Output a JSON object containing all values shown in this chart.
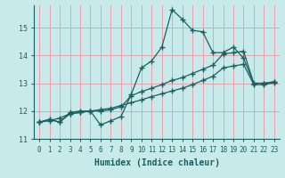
{
  "xlabel": "Humidex (Indice chaleur)",
  "ylabel": "",
  "background_color": "#c8eaea",
  "grid_color": "#e8a0a8",
  "line_color": "#1a6060",
  "border_color": "#1a6060",
  "x": [
    0,
    1,
    2,
    3,
    4,
    5,
    6,
    7,
    8,
    9,
    10,
    11,
    12,
    13,
    14,
    15,
    16,
    17,
    18,
    19,
    20,
    21,
    22,
    23
  ],
  "y_main": [
    11.6,
    11.7,
    11.6,
    11.9,
    11.95,
    12.0,
    11.5,
    11.65,
    11.8,
    12.6,
    13.55,
    13.8,
    14.3,
    15.65,
    15.3,
    14.9,
    14.85,
    14.1,
    14.1,
    14.3,
    13.9,
    13.0,
    13.0,
    13.05
  ],
  "y_line2": [
    11.6,
    11.7,
    11.6,
    11.95,
    12.0,
    12.0,
    12.0,
    12.05,
    12.15,
    12.55,
    12.7,
    12.82,
    12.95,
    13.1,
    13.2,
    13.35,
    13.5,
    13.65,
    14.05,
    14.1,
    14.15,
    13.0,
    13.0,
    13.05
  ],
  "y_line3": [
    11.6,
    11.65,
    11.75,
    11.9,
    11.95,
    12.0,
    12.05,
    12.1,
    12.2,
    12.3,
    12.4,
    12.52,
    12.62,
    12.72,
    12.82,
    12.95,
    13.1,
    13.25,
    13.55,
    13.62,
    13.68,
    12.95,
    12.95,
    13.02
  ],
  "xlim": [
    -0.5,
    23.5
  ],
  "ylim": [
    11.0,
    15.8
  ],
  "yticks": [
    11,
    12,
    13,
    14,
    15
  ],
  "xticks": [
    0,
    1,
    2,
    3,
    4,
    5,
    6,
    7,
    8,
    9,
    10,
    11,
    12,
    13,
    14,
    15,
    16,
    17,
    18,
    19,
    20,
    21,
    22,
    23
  ],
  "marker": "+",
  "markersize": 4,
  "linewidth": 0.9,
  "tick_fontsize": 6,
  "xlabel_fontsize": 7
}
